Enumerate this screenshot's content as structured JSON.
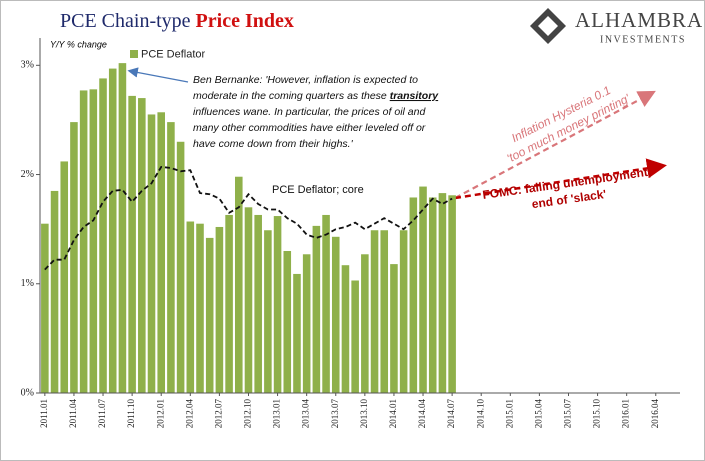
{
  "chart_data": {
    "type": "bar+line",
    "title": [
      "PCE Chain-type ",
      "Price Index"
    ],
    "logo": [
      "ALHAMBRA",
      "INVESTMENTS"
    ],
    "y_axis_label": "Y/Y % change",
    "categories": [
      "2011.01",
      null,
      null,
      "2011.04",
      null,
      null,
      "2011.07",
      null,
      null,
      "2011.10",
      null,
      null,
      "2012.01",
      null,
      null,
      "2012.04",
      null,
      null,
      "2012.07",
      null,
      null,
      "2012.10",
      null,
      null,
      "2013.01",
      null,
      null,
      "2013.04",
      null,
      null,
      "2013.07",
      null,
      null,
      "2013.10",
      null,
      null,
      "2014.01",
      null,
      null,
      "2014.04",
      null,
      null,
      "2014.07",
      null,
      null,
      "2014.10",
      null,
      null,
      "2015.01",
      null,
      null,
      "2015.04",
      null,
      null,
      "2015.07",
      null,
      null,
      "2015.10",
      null,
      null,
      "2016.01",
      null,
      null,
      "2016.04",
      null,
      null
    ],
    "series": [
      {
        "name": "PCE Deflator",
        "kind": "bar",
        "color": "#8fb04a",
        "values": [
          1.55,
          1.85,
          2.12,
          2.48,
          2.77,
          2.78,
          2.88,
          2.97,
          3.02,
          2.72,
          2.7,
          2.55,
          2.57,
          2.48,
          2.3,
          1.57,
          1.55,
          1.42,
          1.52,
          1.63,
          1.98,
          1.7,
          1.63,
          1.49,
          1.62,
          1.3,
          1.09,
          1.27,
          1.53,
          1.63,
          1.43,
          1.17,
          1.03,
          1.27,
          1.49,
          1.49,
          1.18,
          1.49,
          1.79,
          1.89,
          1.79,
          1.83,
          1.81,
          null,
          null,
          null,
          null,
          null,
          null,
          null,
          null,
          null,
          null,
          null,
          null,
          null,
          null,
          null,
          null,
          null,
          null,
          null,
          null,
          null,
          null,
          null
        ]
      },
      {
        "name": "PCE Deflator; core",
        "kind": "line",
        "color": "#111111",
        "values": [
          1.13,
          1.22,
          1.22,
          1.4,
          1.52,
          1.58,
          1.75,
          1.85,
          1.86,
          1.75,
          1.85,
          1.92,
          2.07,
          2.06,
          2.03,
          2.04,
          1.83,
          1.82,
          1.78,
          1.65,
          1.7,
          1.82,
          1.73,
          1.68,
          1.68,
          1.6,
          1.55,
          1.45,
          1.42,
          1.45,
          1.5,
          1.52,
          1.56,
          1.5,
          1.55,
          1.6,
          1.55,
          1.5,
          1.58,
          1.68,
          1.78,
          1.73,
          1.78,
          null,
          null,
          null,
          null,
          null,
          null,
          null,
          null,
          null,
          null,
          null,
          null,
          null,
          null,
          null,
          null,
          null,
          null,
          null,
          null,
          null,
          null,
          null
        ]
      }
    ],
    "ylim": [
      0,
      3.25
    ],
    "yticks": [
      {
        "value": 0,
        "label": "0%"
      },
      {
        "value": 1,
        "label": "1%"
      },
      {
        "value": 2,
        "label": "2%"
      },
      {
        "value": 3,
        "label": "3%"
      }
    ],
    "legend": "top-left",
    "bernanke_quote": [
      [
        "Ben Bernanke: 'However, inflation is expected to"
      ],
      [
        "moderate in the coming quarters as these ",
        "transitory"
      ],
      [
        "influences wane. In particular, the prices of oil and"
      ],
      [
        "many other commodities have either leveled off or"
      ],
      [
        "have come down from their highs.'"
      ]
    ],
    "hysteria_note": [
      "Inflation Hysteria 0.1",
      "'too much money printing'"
    ],
    "fomc_note": [
      "FOMC: falling unemployment,",
      "end of 'slack'"
    ]
  }
}
